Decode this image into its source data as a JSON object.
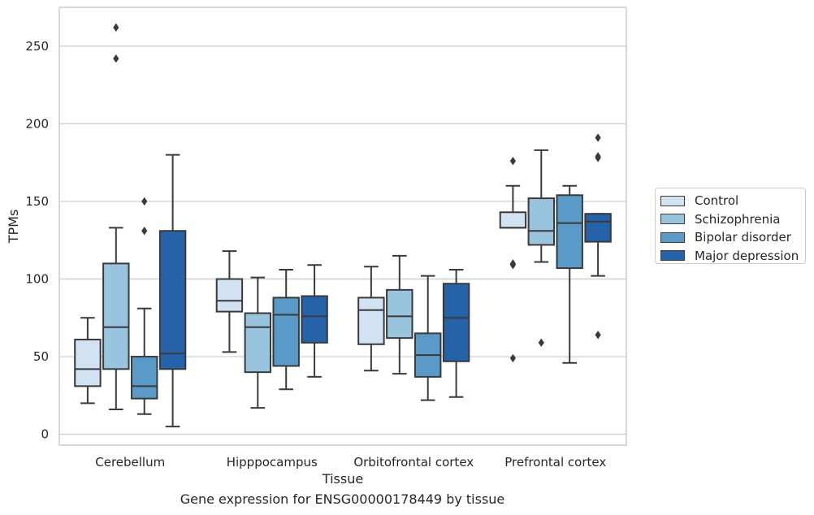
{
  "chart_data": {
    "type": "box",
    "caption": "Gene expression for ENSG00000178449 by tissue",
    "xlabel": "Tissue",
    "ylabel": "TPMs",
    "ylim": [
      -7,
      275
    ],
    "yticks": [
      0,
      50,
      100,
      150,
      200,
      250
    ],
    "grid": true,
    "legend_position": "outside-right",
    "categories": [
      "Cerebellum",
      "Hipppocampus",
      "Orbitofrontal cortex",
      "Prefrontal cortex"
    ],
    "series": [
      {
        "name": "Control",
        "color": "#d2e2f2",
        "boxes": [
          {
            "whisker_low": 20,
            "q1": 31,
            "median": 42,
            "q3": 61,
            "whisker_high": 75,
            "outliers": []
          },
          {
            "whisker_low": 53,
            "q1": 79,
            "median": 86,
            "q3": 100,
            "whisker_high": 118,
            "outliers": []
          },
          {
            "whisker_low": 41,
            "q1": 58,
            "median": 80,
            "q3": 88,
            "whisker_high": 108,
            "outliers": []
          },
          {
            "whisker_low": 133,
            "q1": 133,
            "median": 133,
            "q3": 143,
            "whisker_high": 160,
            "outliers": [
              176,
              110,
              109,
              49
            ]
          }
        ]
      },
      {
        "name": "Schizophrenia",
        "color": "#99c4de",
        "boxes": [
          {
            "whisker_low": 16,
            "q1": 42,
            "median": 69,
            "q3": 110,
            "whisker_high": 133,
            "outliers": [
              262,
              242
            ]
          },
          {
            "whisker_low": 17,
            "q1": 40,
            "median": 69,
            "q3": 78,
            "whisker_high": 101,
            "outliers": []
          },
          {
            "whisker_low": 39,
            "q1": 62,
            "median": 76,
            "q3": 93,
            "whisker_high": 115,
            "outliers": []
          },
          {
            "whisker_low": 111,
            "q1": 122,
            "median": 131,
            "q3": 152,
            "whisker_high": 183,
            "outliers": [
              59
            ]
          }
        ]
      },
      {
        "name": "Bipolar disorder",
        "color": "#5a9ac8",
        "boxes": [
          {
            "whisker_low": 13,
            "q1": 23,
            "median": 31,
            "q3": 50,
            "whisker_high": 81,
            "outliers": [
              150,
              131
            ]
          },
          {
            "whisker_low": 29,
            "q1": 44,
            "median": 77,
            "q3": 88,
            "whisker_high": 106,
            "outliers": []
          },
          {
            "whisker_low": 22,
            "q1": 37,
            "median": 51,
            "q3": 65,
            "whisker_high": 102,
            "outliers": []
          },
          {
            "whisker_low": 46,
            "q1": 107,
            "median": 136,
            "q3": 154,
            "whisker_high": 160,
            "outliers": []
          }
        ]
      },
      {
        "name": "Major depression",
        "color": "#2563a8",
        "boxes": [
          {
            "whisker_low": 5,
            "q1": 42,
            "median": 52,
            "q3": 131,
            "whisker_high": 180,
            "outliers": []
          },
          {
            "whisker_low": 37,
            "q1": 59,
            "median": 76,
            "q3": 89,
            "whisker_high": 109,
            "outliers": []
          },
          {
            "whisker_low": 24,
            "q1": 47,
            "median": 75,
            "q3": 97,
            "whisker_high": 106,
            "outliers": []
          },
          {
            "whisker_low": 102,
            "q1": 124,
            "median": 137,
            "q3": 142,
            "whisker_high": 142,
            "outliers": [
              191,
              179,
              178,
              64
            ]
          }
        ]
      }
    ]
  }
}
